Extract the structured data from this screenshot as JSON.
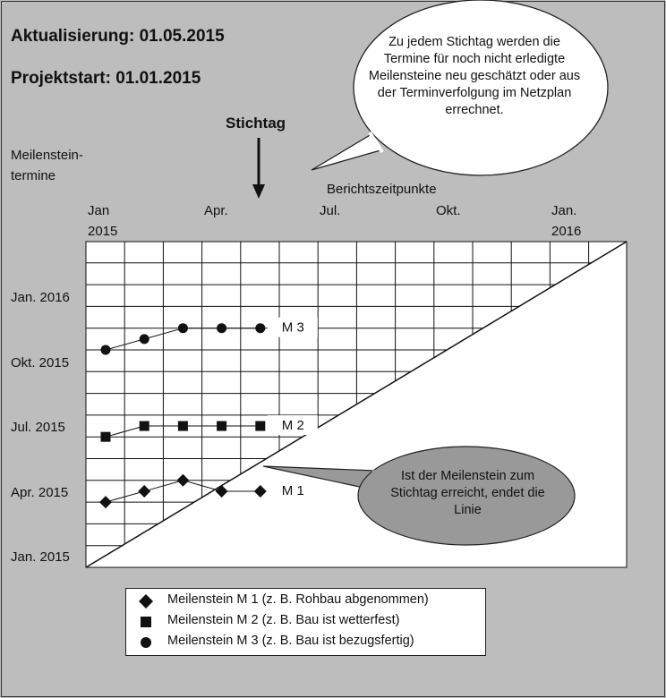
{
  "header": {
    "update_line": "Aktualisierung: 01.05.2015",
    "start_line": "Projektstart: 01.01.2015"
  },
  "cutoff_label": "Stichtag",
  "y_axis_title_line1": "Meilenstein-",
  "y_axis_title_line2": "termine",
  "x_axis_title": "Berichtszeitpunkte",
  "x_ticks": [
    {
      "line1": "Jan",
      "line2": "2015"
    },
    {
      "line1": "Apr.",
      "line2": ""
    },
    {
      "line1": "Jul.",
      "line2": ""
    },
    {
      "line1": "Okt.",
      "line2": ""
    },
    {
      "line1": "Jan.",
      "line2": "2016"
    }
  ],
  "y_ticks": [
    "Jan. 2016",
    "Okt. 2015",
    "Jul. 2015",
    "Apr. 2015",
    "Jan. 2015"
  ],
  "callout_top": "Zu jedem Stichtag werden die Termine für noch nicht erledigte Meilensteine neu geschätzt oder aus der Terminverfolgung im Netzplan errechnet.",
  "callout_bottom": "Ist der Meilenstein zum Stichtag erreicht, endet die Linie",
  "chart_data": {
    "type": "line",
    "x": [
      "Jan 2015",
      "Feb 2015",
      "Mar 2015",
      "Apr 2015",
      "May 2015"
    ],
    "series": [
      {
        "name": "M 1",
        "marker": "diamond",
        "values": [
          3.0,
          3.5,
          4.0,
          3.5,
          3.5
        ]
      },
      {
        "name": "M 2",
        "marker": "square",
        "values": [
          6.0,
          6.5,
          6.5,
          6.5,
          6.5
        ]
      },
      {
        "name": "M 3",
        "marker": "circle",
        "values": [
          10.0,
          10.5,
          11.0,
          11.0,
          11.0
        ]
      }
    ],
    "series_labels": [
      "M 1",
      "M 2",
      "M 3"
    ],
    "xlabel": "Berichtszeitpunkte",
    "ylabel": "Meilenstein-termine",
    "xlim": [
      "Jan 2015",
      "Mar 2016"
    ],
    "ylim": [
      "Jan 2015",
      "Mar 2016"
    ],
    "grid": true
  },
  "legend": [
    {
      "marker": "diamond",
      "label": "Meilenstein M 1 (z. B. Rohbau abgenommen)"
    },
    {
      "marker": "square",
      "label": "Meilenstein M 2 (z. B. Bau ist wetterfest)"
    },
    {
      "marker": "circle",
      "label": "Meilenstein M 3 (z. B. Bau ist bezugsfertig)"
    }
  ]
}
